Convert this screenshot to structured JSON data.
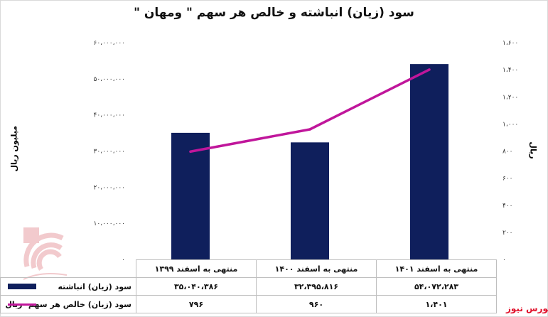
{
  "chart_data": {
    "type": "bar+line",
    "title": "سود (زیان) انباشته و خالص هر سهم \" ومهان \"",
    "categories": [
      "منتهی به اسفند ۱۳۹۹",
      "منتهی به اسفند ۱۴۰۰",
      "منتهی به اسفند ۱۴۰۱"
    ],
    "series": [
      {
        "name": "سود (زیان) انباشته",
        "type": "bar",
        "axis": "left",
        "color": "#0f1f5c",
        "values": [
          35040386,
          32395816,
          54072283
        ],
        "labels": [
          "۳۵،۰۴۰،۳۸۶",
          "۳۲،۳۹۵،۸۱۶",
          "۵۴،۰۷۲،۲۸۳"
        ]
      },
      {
        "name": "سود (زیان) خالص هر سهم- ریال",
        "type": "line",
        "axis": "right",
        "color": "#c0169b",
        "values": [
          796,
          960,
          1401
        ],
        "labels": [
          "۷۹۶",
          "۹۶۰",
          "۱،۴۰۱"
        ]
      }
    ],
    "ylabel_left": "میلیون ریال",
    "ylabel_right": "ریال",
    "ylim_left": [
      0,
      60000000
    ],
    "ylim_right": [
      0,
      1600
    ],
    "yticks_left": [
      "۰",
      "۱۰،۰۰۰،۰۰۰",
      "۲۰،۰۰۰،۰۰۰",
      "۳۰،۰۰۰،۰۰۰",
      "۴۰،۰۰۰،۰۰۰",
      "۵۰،۰۰۰،۰۰۰",
      "۶۰،۰۰۰،۰۰۰"
    ],
    "yticks_right": [
      "۰",
      "۲۰۰",
      "۴۰۰",
      "۶۰۰",
      "۸۰۰",
      "۱،۰۰۰",
      "۱،۲۰۰",
      "۱،۴۰۰",
      "۱،۶۰۰"
    ],
    "grid": false,
    "legend": "data-table-bottom"
  },
  "source": "بورس نیوز",
  "watermark": "بورس نیوز"
}
